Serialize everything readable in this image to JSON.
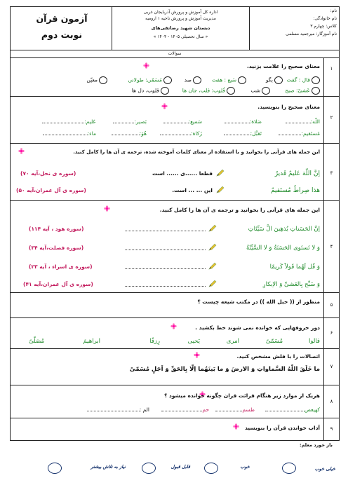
{
  "header": {
    "exam_title": "آزمون قرآن",
    "round": "نوبت دوم",
    "org_line1": "اداره کل آموزش و پرورش آذربایجان غربی",
    "org_line2": "مدیریت آموزش و پرورش ناحیه ۱ ارومیه",
    "school": "دبستان شهید رضاتقی‌های",
    "year": "« سال تحصیلی ۱۴۰۵ - ۱۴۰۴ »",
    "name_label": "نام:",
    "family_label": "نام خانوادگی:",
    "class_label": "کلاس: چهارم ۳",
    "teacher_label": "نام آموزگار: میرجمید مسلمی",
    "questions_label": "سوالات"
  },
  "q1": {
    "num": "۱",
    "text": "معنای صحیح را علامت بزنید.",
    "opts_row1": [
      "قال : گفت",
      "بگو",
      "سَبع : هفت",
      "صد",
      "مُسَمّی: طولانی",
      "معیّن"
    ],
    "opts_row2": [
      "عَشیّ: صبح",
      "شب",
      "قُلوب: قلب، جان ها",
      "قلوب، دل ها"
    ]
  },
  "q2": {
    "num": "۲",
    "text": "معنای صحیح را بنویسید.",
    "row1": [
      "اللّه:",
      "صَلاة:",
      "سَمیع:",
      "بَصیر:",
      "عَلیم:"
    ],
    "row2": [
      "مُستَقیم:",
      "تَقبَّل:",
      "زَکاة:",
      "هُوَ:",
      "ماء:"
    ]
  },
  "q3": {
    "num": "۳",
    "text": "این جمله های قرآنی را بخوانید و با استفاده از معنای کلمات آموخته شده، ترجمه ی آن ها را کامل کنید.",
    "v1_ar": "اِنَّ اللّهَ عَلیمٌ قَدیرٌ",
    "v1_fa": "قطعا ......ی ...... است",
    "v1_ref": "(سوره ی نحل،آیه ۷۰)",
    "v2_ar": "هذا صِراطٌ مُستَقیمٌ",
    "v2_fa": "این ... ... است.",
    "v2_ref": "(سوره ی آل عمران،آیه ۵۰)"
  },
  "q4": {
    "num": "۴",
    "text": "این جمله های قرآنی را بخوانید و ترجمه ی آن ها را کامل کنید.",
    "verses": [
      {
        "ar": "اِنَّ الحَسَناتِ یُذهِبنَ الَّ سَیِّئاتِ",
        "ref": "(سوره هود ، آیه ۱۱۴)"
      },
      {
        "ar": "وَ لا تَستَوی الحَسَنَةُ وَ لا السَّیِّئَةُ",
        "ref": "(سوره فصلت،آیه ۳۴)"
      },
      {
        "ar": "وَ قُل لَهُما قَولاً کَریمًا",
        "ref": "(سوره ی اسراء ، آیه ۲۳)"
      },
      {
        "ar": "وَ سَبِّح بِالعَشیِّ وَ الاِبکارِ",
        "ref": "(سوره ی آل عمران،آیه ۴۱)"
      }
    ]
  },
  "q5": {
    "num": "۵",
    "text": "منظور از (( حبل الله )) در مکتب شیعه چیست ؟"
  },
  "q6": {
    "num": "۶",
    "text": "دور حروفهایی که خوانده نمی شوند خط بکشید .",
    "words": [
      "قالوا",
      "مُسَمّیً",
      "امری",
      "یَحیی",
      "رِزقًا",
      "ابراهیمَ",
      "مُصَلّیً"
    ]
  },
  "q7": {
    "num": "۷",
    "text": "اتصالات را با فلش مشخص کنید.",
    "verse": "ما خَلَقَ اللّهُ السَّماواتِ وَ الارضَ وَ ما بَینَهُما اِلّا بِالحَقِّ وَ اَجَلٍ مُسَمّیً"
  },
  "q8": {
    "num": "۸",
    "text": "هریک از موارد زیر هنگام قرائت قران چگونه خوانده میشود ؟",
    "items": [
      "کهیعص",
      "طسم",
      "حم",
      "الم :"
    ]
  },
  "q9": {
    "num": "۹",
    "text": "آداب خواندن قرآن را بنویسید"
  },
  "footer": {
    "title": "باز خورد معلم:",
    "levels": [
      "خیلی خوب",
      "خوب",
      "قابل قبول",
      "نیاز به تلاش بیشتر"
    ]
  },
  "colors": {
    "green": "#1f8a2a",
    "red": "#c2185b",
    "oval": "#13306b"
  }
}
